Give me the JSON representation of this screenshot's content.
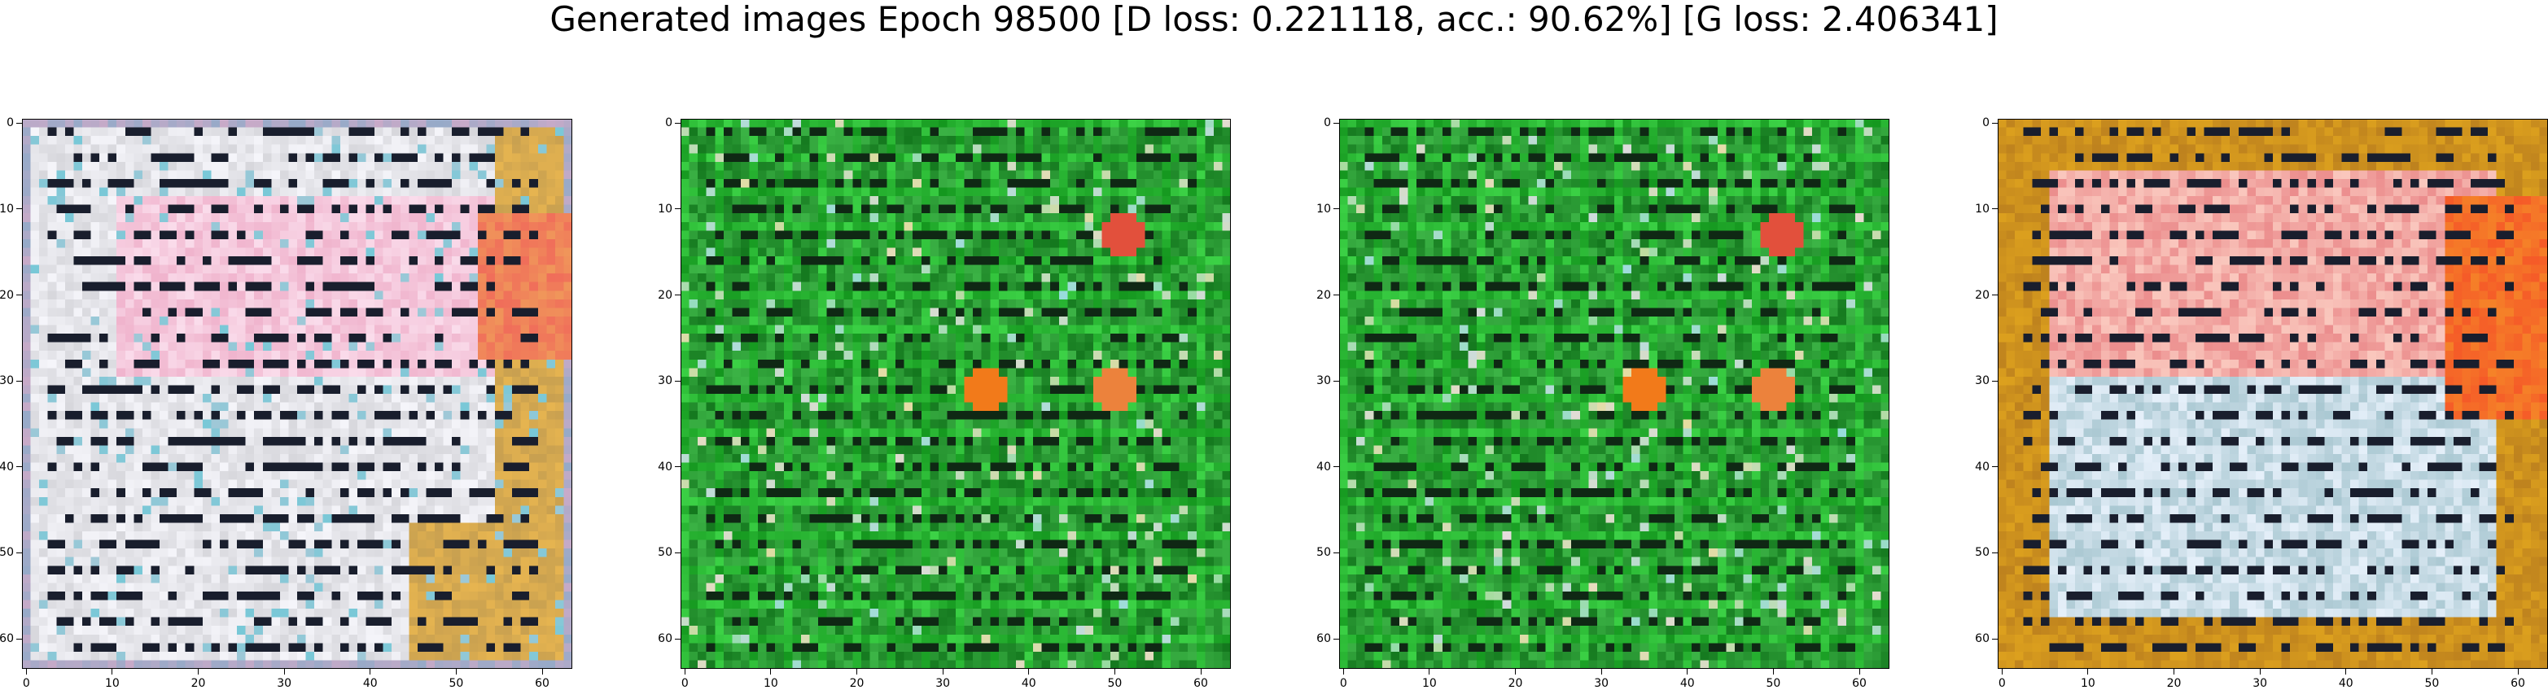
{
  "figure": {
    "title": "Generated images Epoch 98500 [D loss: 0.221118, acc.: 90.62%] [G loss: 2.406341]"
  },
  "axes": {
    "x_ticks": [
      "0",
      "10",
      "20",
      "30",
      "40",
      "50",
      "60"
    ],
    "y_ticks": [
      "0",
      "10",
      "20",
      "30",
      "40",
      "50",
      "60"
    ],
    "tick_values": [
      0,
      10,
      20,
      30,
      40,
      50,
      60
    ],
    "image_size": 64
  },
  "panels": [
    {
      "name": "sample-1",
      "style": "pale-pink-cyan",
      "colors": [
        "#e7dce0",
        "#f0b6c8",
        "#8fcdd4",
        "#c89a3a",
        "#1a2030"
      ]
    },
    {
      "name": "sample-2",
      "style": "green",
      "colors": [
        "#0b8a1c",
        "#59c66a",
        "#f28a1e",
        "#1b2a1b"
      ]
    },
    {
      "name": "sample-3",
      "style": "green",
      "colors": [
        "#0b8a1c",
        "#59c66a",
        "#f28a1e",
        "#e02020",
        "#1b2a1b"
      ]
    },
    {
      "name": "sample-4",
      "style": "orange-pink-cyan",
      "colors": [
        "#c88a1a",
        "#ee8a86",
        "#9ccde0",
        "#5a3a10",
        "#1a2030"
      ]
    }
  ]
}
